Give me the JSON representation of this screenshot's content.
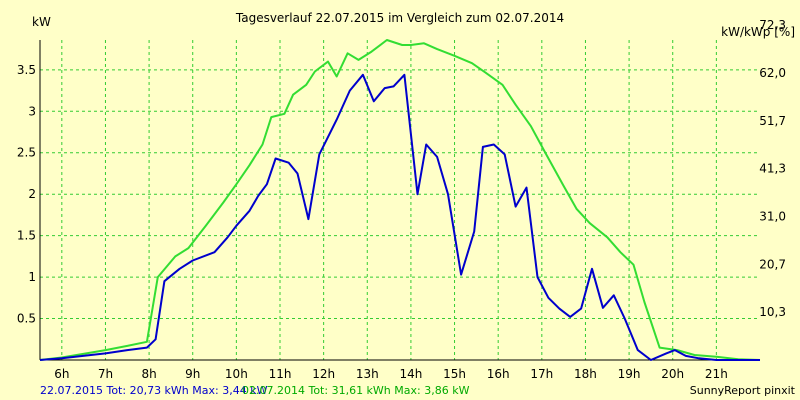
{
  "colors": {
    "background": "#ffffc8",
    "grid": "#33cc33",
    "series_2015": "#0000cc",
    "series_2014": "#33dd33",
    "text": "#000000",
    "footer_2015": "#0000cc",
    "footer_2014": "#00aa00"
  },
  "chart_data": {
    "type": "line",
    "title": "Tagesverlauf 22.07.2015 im Vergleich zum 02.07.2014",
    "ylabel": "kW",
    "y2label": "kW/kWp [%]",
    "xlim": [
      5.5,
      22
    ],
    "ylim": [
      0,
      3.86
    ],
    "x_ticks": [
      6,
      7,
      8,
      9,
      10,
      11,
      12,
      13,
      14,
      15,
      16,
      17,
      18,
      19,
      20,
      21
    ],
    "x_tick_labels": [
      "6h",
      "7h",
      "8h",
      "9h",
      "10h",
      "11h",
      "12h",
      "13h",
      "14h",
      "15h",
      "16h",
      "17h",
      "18h",
      "19h",
      "20h",
      "21h"
    ],
    "y_ticks": [
      0.5,
      1,
      1.5,
      2,
      2.5,
      3,
      3.5
    ],
    "y_tick_labels": [
      "0.5",
      "1",
      "1.5",
      "2",
      "2.5",
      "3",
      "3.5"
    ],
    "y2_ticks": [
      0.576,
      1.154,
      1.73,
      2.308,
      2.884,
      3.462,
      4.04
    ],
    "y2_tick_labels": [
      "10,3",
      "20,7",
      "31,0",
      "41,3",
      "51,7",
      "62,0",
      "72,3"
    ],
    "grid": true,
    "series": [
      {
        "name": "22.07.2015",
        "color": "#0000cc",
        "points": [
          [
            5.5,
            0
          ],
          [
            6,
            0.02
          ],
          [
            7,
            0.08
          ],
          [
            7.5,
            0.12
          ],
          [
            7.95,
            0.15
          ],
          [
            8.15,
            0.25
          ],
          [
            8.35,
            0.95
          ],
          [
            8.7,
            1.1
          ],
          [
            9,
            1.2
          ],
          [
            9.5,
            1.3
          ],
          [
            9.8,
            1.48
          ],
          [
            10,
            1.62
          ],
          [
            10.3,
            1.8
          ],
          [
            10.5,
            1.98
          ],
          [
            10.7,
            2.12
          ],
          [
            10.9,
            2.43
          ],
          [
            11.2,
            2.38
          ],
          [
            11.4,
            2.25
          ],
          [
            11.65,
            1.7
          ],
          [
            11.9,
            2.48
          ],
          [
            12.3,
            2.9
          ],
          [
            12.6,
            3.25
          ],
          [
            12.9,
            3.44
          ],
          [
            13.15,
            3.12
          ],
          [
            13.4,
            3.28
          ],
          [
            13.6,
            3.3
          ],
          [
            13.85,
            3.44
          ],
          [
            14.15,
            2.0
          ],
          [
            14.35,
            2.6
          ],
          [
            14.6,
            2.45
          ],
          [
            14.85,
            2.0
          ],
          [
            15.15,
            1.03
          ],
          [
            15.45,
            1.55
          ],
          [
            15.65,
            2.57
          ],
          [
            15.9,
            2.6
          ],
          [
            16.15,
            2.48
          ],
          [
            16.4,
            1.85
          ],
          [
            16.65,
            2.08
          ],
          [
            16.9,
            1.0
          ],
          [
            17.15,
            0.75
          ],
          [
            17.4,
            0.62
          ],
          [
            17.65,
            0.52
          ],
          [
            17.9,
            0.62
          ],
          [
            18.15,
            1.1
          ],
          [
            18.4,
            0.63
          ],
          [
            18.65,
            0.78
          ],
          [
            18.9,
            0.5
          ],
          [
            19.2,
            0.12
          ],
          [
            19.5,
            0.0
          ],
          [
            19.85,
            0.08
          ],
          [
            20.05,
            0.12
          ],
          [
            20.3,
            0.05
          ],
          [
            20.6,
            0.02
          ],
          [
            21,
            0.0
          ],
          [
            22,
            0
          ]
        ]
      },
      {
        "name": "02.07.2014",
        "color": "#33dd33",
        "points": [
          [
            5.5,
            0
          ],
          [
            6,
            0.03
          ],
          [
            7,
            0.12
          ],
          [
            7.5,
            0.17
          ],
          [
            7.95,
            0.22
          ],
          [
            8.2,
            1.0
          ],
          [
            8.6,
            1.25
          ],
          [
            8.9,
            1.35
          ],
          [
            9.3,
            1.62
          ],
          [
            9.7,
            1.9
          ],
          [
            10,
            2.12
          ],
          [
            10.3,
            2.35
          ],
          [
            10.6,
            2.6
          ],
          [
            10.8,
            2.93
          ],
          [
            11.1,
            2.97
          ],
          [
            11.3,
            3.2
          ],
          [
            11.6,
            3.32
          ],
          [
            11.8,
            3.48
          ],
          [
            12.1,
            3.6
          ],
          [
            12.3,
            3.42
          ],
          [
            12.55,
            3.7
          ],
          [
            12.8,
            3.62
          ],
          [
            13.1,
            3.72
          ],
          [
            13.45,
            3.86
          ],
          [
            13.8,
            3.8
          ],
          [
            14.0,
            3.8
          ],
          [
            14.3,
            3.82
          ],
          [
            14.6,
            3.75
          ],
          [
            15.0,
            3.67
          ],
          [
            15.4,
            3.58
          ],
          [
            15.7,
            3.47
          ],
          [
            16.1,
            3.32
          ],
          [
            16.4,
            3.08
          ],
          [
            16.75,
            2.82
          ],
          [
            17.1,
            2.48
          ],
          [
            17.5,
            2.1
          ],
          [
            17.8,
            1.82
          ],
          [
            18.1,
            1.65
          ],
          [
            18.5,
            1.48
          ],
          [
            18.8,
            1.3
          ],
          [
            19.1,
            1.15
          ],
          [
            19.35,
            0.7
          ],
          [
            19.7,
            0.15
          ],
          [
            20.1,
            0.12
          ],
          [
            20.5,
            0.06
          ],
          [
            21,
            0.04
          ],
          [
            21.5,
            0.01
          ],
          [
            22,
            0
          ]
        ]
      }
    ]
  },
  "footer": {
    "summary_2015": "22.07.2015 Tot: 20,73 kWh Max: 3,44 kW",
    "summary_2014": "02.07.2014 Tot: 31,61 kWh Max: 3,86 kW",
    "brand": "SunnyReport pinxit"
  }
}
